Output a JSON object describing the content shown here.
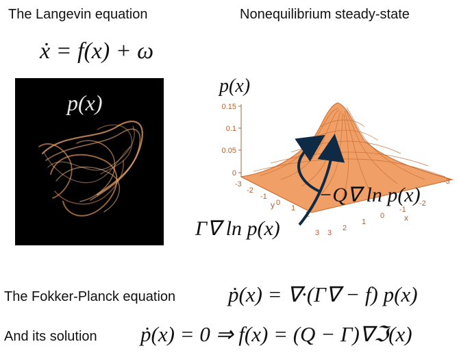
{
  "titles": {
    "left": "The Langevin equation",
    "right": "Nonequilibrium steady-state"
  },
  "equations": {
    "langevin": "ẋ = f(x) + ω",
    "fokker_planck": "ṗ(x) = ∇·(Γ∇ − f) p(x)",
    "solution": "ṗ(x) = 0 ⇒ f(x) = (Q − Γ)∇ℑ(x)"
  },
  "labels": {
    "density_black": "p(x)",
    "density_surface": "p(x)",
    "rotational_flow": "−Q∇ ln p(x)",
    "gradient_flow": "Γ∇ ln p(x)",
    "fokker_planck_name": "The Fokker-Planck equation",
    "solution_name": "And its solution"
  },
  "surface_plot": {
    "z_ticks": [
      "0.15",
      "0.1",
      "0.05",
      "0"
    ],
    "y_ticks": [
      "-3",
      "-2",
      "-1",
      "0",
      "1",
      "2",
      "3"
    ],
    "x_ticks": [
      "-3",
      "-2",
      "-1",
      "0",
      "1",
      "2",
      "3"
    ],
    "y_axis_label": "y",
    "x_axis_label": "x"
  },
  "colors": {
    "surface": "#f0a066",
    "surface_line": "#c86a30",
    "arrow": "#0e2a45",
    "black_panel": "#000000",
    "wisps": "#e8a46a"
  }
}
